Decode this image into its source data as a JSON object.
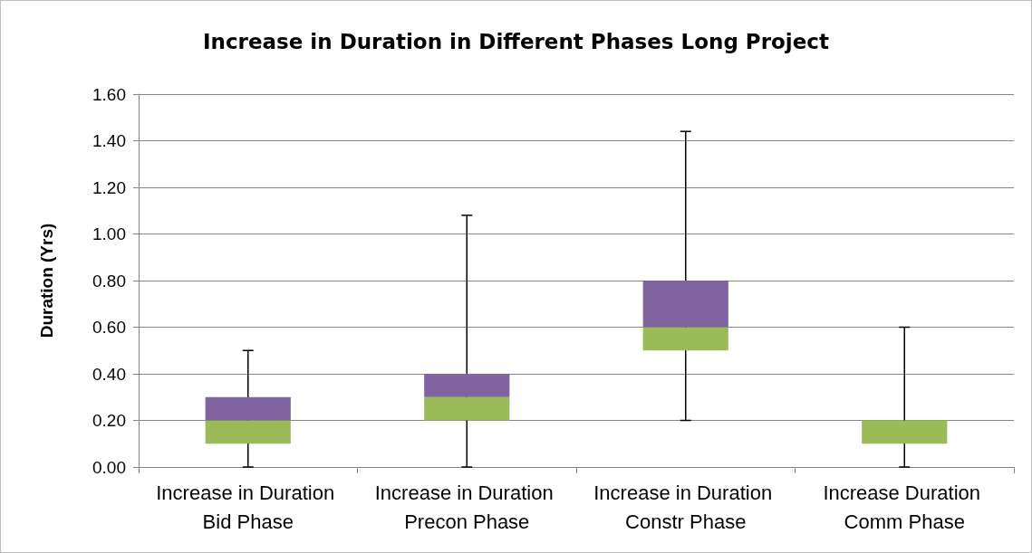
{
  "chart_data": {
    "type": "box",
    "title": "Increase in Duration in Different Phases Long Project",
    "ylabel": "Duration (Yrs)",
    "categories": [
      "Increase in Duration Bid Phase",
      "Increase in Duration Precon Phase",
      "Increase in Duration Constr Phase",
      "Increase Duration Comm Phase"
    ],
    "boxes": [
      {
        "low": 0,
        "q1": 0.1,
        "median": 0.2,
        "q3": 0.3,
        "high": 0.5
      },
      {
        "low": 0,
        "q1": 0.2,
        "median": 0.3,
        "q3": 0.4,
        "high": 1.08
      },
      {
        "low": 0.2,
        "q1": 0.5,
        "median": 0.6,
        "q3": 0.8,
        "high": 1.44
      },
      {
        "low": 0,
        "q1": 0.1,
        "median": 0.2,
        "q3": 0.2,
        "high": 0.6
      }
    ],
    "colors": [
      [
        "#9bbb59",
        "#8064a2"
      ],
      [
        "#9bbb59",
        "#8064a2"
      ],
      [
        "#9bbb59",
        "#8064a2"
      ],
      [
        "#9bbb59",
        "#8064a2"
      ]
    ],
    "ylim": [
      0,
      1.6
    ],
    "yticks": [
      {
        "value": 0,
        "label": "0.00"
      },
      {
        "value": 0.2,
        "label": "0.20"
      },
      {
        "value": 0.4,
        "label": "0.40"
      },
      {
        "value": 0.6,
        "label": "0.60"
      },
      {
        "value": 0.8,
        "label": "0.80"
      },
      {
        "value": 1,
        "label": "1.00"
      },
      {
        "value": 1.2,
        "label": "1.20"
      },
      {
        "value": 1.4,
        "label": "1.40"
      },
      {
        "value": 1.6,
        "label": "1.60"
      }
    ],
    "grid": "y"
  }
}
